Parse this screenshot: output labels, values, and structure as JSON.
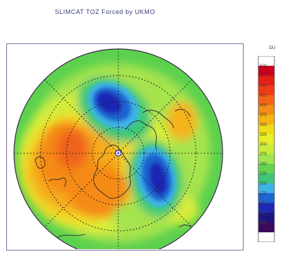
{
  "title": "SLIMCAT TOZ Forced by UKMO",
  "colorbar": {
    "units": "DU",
    "levels": [
      500,
      475,
      450,
      425,
      400,
      375,
      350,
      325,
      300,
      275,
      250,
      225,
      200,
      175,
      150,
      125,
      100
    ],
    "colors": [
      "#ffffff",
      "#c8001e",
      "#e61e14",
      "#f03c14",
      "#f56414",
      "#f58c14",
      "#f5b414",
      "#f0dc14",
      "#e6f028",
      "#c8ee3c",
      "#a0e650",
      "#64d250",
      "#3cc878",
      "#3cb4e6",
      "#1e64d2",
      "#1e28b4",
      "#1e1482",
      "#3c0a5a",
      "#ffffff"
    ]
  },
  "chart_data": {
    "type": "heatmap",
    "title": "SLIMCAT TOZ Forced by UKMO",
    "colorbar_label": "DU",
    "colorbar_range": [
      100,
      500
    ],
    "projection": "polar-stereographic",
    "features": [
      {
        "label": "ozone low (upper centre)",
        "value": 175
      },
      {
        "label": "ozone low (right of pole)",
        "value": 175
      },
      {
        "label": "ozone high (left)",
        "value": 450
      }
    ]
  }
}
